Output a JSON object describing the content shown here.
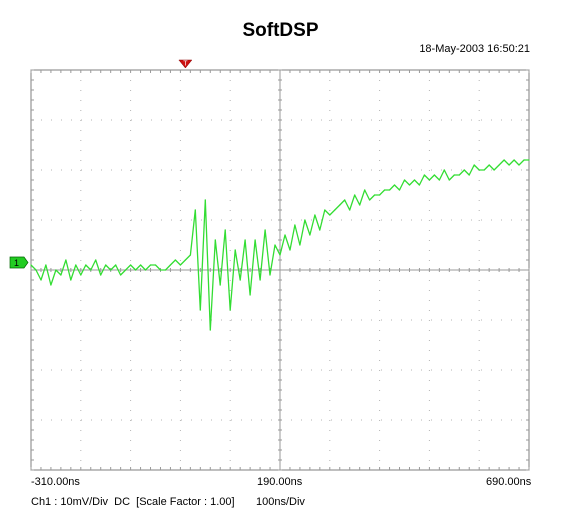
{
  "title": "SoftDSP",
  "timestamp": "18-May-2003 16:50:21",
  "channel": {
    "marker_label": "1",
    "info": "Ch1 : 10mV/Div  DC  [Scale Factor : 1.00]",
    "timebase": "100ns/Div",
    "trace_color": "#33dd33",
    "marker_color": "#22cc22",
    "trigger_color": "#cc1111"
  },
  "chart_data": {
    "type": "line",
    "title": "SoftDSP",
    "xlabel": "",
    "ylabel": "",
    "xlim": [
      -310,
      690
    ],
    "ylim": [
      -40,
      40
    ],
    "x_ticks": [
      "-310.00ns",
      "190.00ns",
      "690.00ns"
    ],
    "grid": true,
    "trigger_time_ns": 0,
    "series": [
      {
        "x": [
          -310,
          -300,
          -290,
          -280,
          -270,
          -260,
          -250,
          -240,
          -230,
          -220,
          -210,
          -200,
          -190,
          -180,
          -170,
          -160,
          -150,
          -140,
          -130,
          -120,
          -110,
          -100,
          -90,
          -80,
          -70,
          -60,
          -50,
          -40,
          -30,
          -20,
          -10,
          0,
          10,
          20,
          30,
          40,
          50,
          60,
          70,
          80,
          90,
          100,
          110,
          120,
          130,
          140,
          150,
          160,
          170,
          180,
          190,
          200,
          210,
          220,
          230,
          240,
          250,
          260,
          270,
          280,
          290,
          300,
          310,
          320,
          330,
          340,
          350,
          360,
          370,
          380,
          390,
          400,
          410,
          420,
          430,
          440,
          450,
          460,
          470,
          480,
          490,
          500,
          510,
          520,
          530,
          540,
          550,
          560,
          570,
          580,
          590,
          600,
          610,
          620,
          630,
          640,
          650,
          660,
          670,
          680,
          690
        ],
        "values": [
          1,
          0,
          -2,
          1,
          -3,
          0,
          -1,
          2,
          -2,
          1,
          -1,
          1,
          0,
          2,
          -1,
          1,
          0,
          1,
          -1,
          0,
          1,
          0,
          1,
          0,
          1,
          1,
          0,
          0,
          1,
          2,
          1,
          2,
          3,
          12,
          -8,
          14,
          -12,
          6,
          -3,
          8,
          -8,
          4,
          -2,
          6,
          -5,
          6,
          -2,
          8,
          -1,
          5,
          3,
          7,
          4,
          9,
          5,
          10,
          7,
          11,
          8,
          12,
          11,
          12,
          13,
          14,
          12,
          15,
          13,
          16,
          14,
          15,
          15,
          16,
          16,
          17,
          16,
          18,
          17,
          18,
          17,
          19,
          18,
          19,
          18,
          20,
          18,
          19,
          19,
          20,
          19,
          21,
          20,
          20,
          21,
          20,
          21,
          22,
          21,
          22,
          21,
          22,
          22
        ]
      }
    ]
  }
}
